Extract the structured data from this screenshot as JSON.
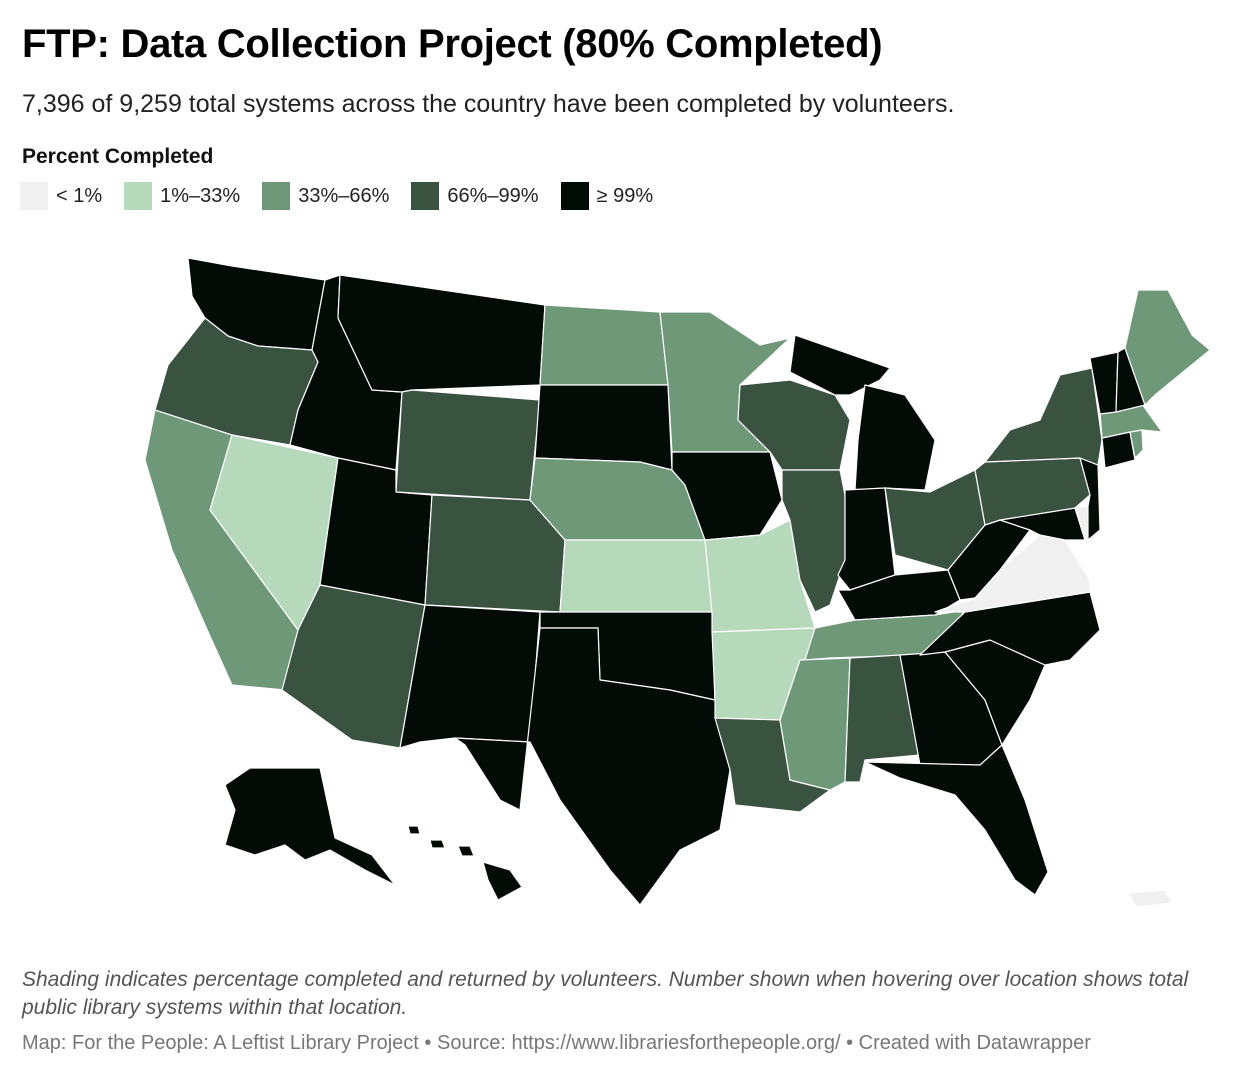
{
  "header": {
    "title": "FTP: Data Collection Project (80% Completed)",
    "subtitle": "7,396 of 9,259 total systems across the country have been completed by volunteers."
  },
  "legend": {
    "title": "Percent Completed",
    "items": [
      {
        "label": "< 1%",
        "color": "#f0f0f0"
      },
      {
        "label": "1%–33%",
        "color": "#b7d9bb"
      },
      {
        "label": "33%–66%",
        "color": "#6e9878"
      },
      {
        "label": "66%–99%",
        "color": "#3a5340"
      },
      {
        "label": "≥ 99%",
        "color": "#020b05"
      }
    ]
  },
  "colors": {
    "lt1": "#f0f0f0",
    "b1_33": "#b7d9bb",
    "b33_66": "#6e9878",
    "b66_99": "#3a5340",
    "ge99": "#020b05"
  },
  "notes": "Shading indicates percentage completed and returned by volunteers. Number shown when hovering over location shows total public library systems within that location.",
  "footer": "Map: For the People: A Leftist Library Project • Source: https://www.librariesforthepeople.org/ • Created with Datawrapper",
  "states": {
    "WA": "ge99",
    "OR": "b66_99",
    "CA": "b33_66",
    "NV": "b1_33",
    "ID": "ge99",
    "MT": "ge99",
    "WY": "b66_99",
    "UT": "ge99",
    "AZ": "b66_99",
    "CO": "b66_99",
    "NM": "ge99",
    "ND": "b33_66",
    "SD": "ge99",
    "NE": "b33_66",
    "KS": "b1_33",
    "OK": "ge99",
    "TX": "ge99",
    "MN": "b33_66",
    "IA": "ge99",
    "MO": "b1_33",
    "AR": "b1_33",
    "LA": "b66_99",
    "WI": "b66_99",
    "IL": "b66_99",
    "MI": "ge99",
    "IN": "ge99",
    "OH": "b66_99",
    "KY": "ge99",
    "TN": "b33_66",
    "MS": "b33_66",
    "AL": "b66_99",
    "GA": "ge99",
    "FL": "ge99",
    "SC": "ge99",
    "NC": "ge99",
    "VA": "lt1",
    "WV": "ge99",
    "MD": "ge99",
    "DE": "lt1",
    "PA": "b66_99",
    "NJ": "ge99",
    "NY": "b66_99",
    "CT": "ge99",
    "RI": "b33_66",
    "MA": "b33_66",
    "VT": "ge99",
    "NH": "ge99",
    "ME": "b33_66",
    "AK": "ge99",
    "HI": "ge99",
    "PR": "lt1"
  }
}
